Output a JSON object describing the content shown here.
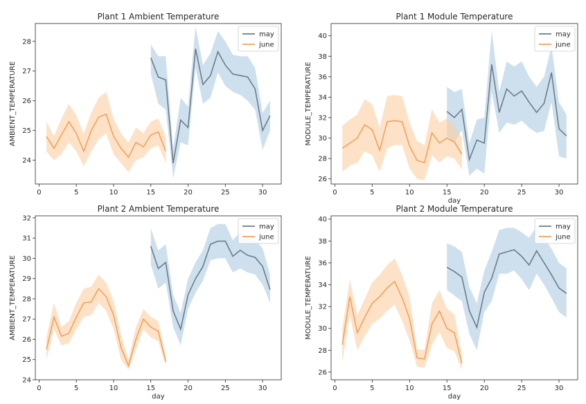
{
  "colors": {
    "may_line": "#6b7b8a",
    "may_band": "#aecbe3",
    "june_line": "#f5a05a",
    "june_band": "#fbcfa4"
  },
  "chart_data": [
    {
      "type": "line",
      "title": "Plant 1 Ambient Temperature",
      "xlabel": "",
      "ylabel": "AMBIENT_TEMPERATURE",
      "xlim": [
        -0.5,
        32.5
      ],
      "ylim": [
        23.2,
        28.6
      ],
      "xticks": [
        0,
        5,
        10,
        15,
        20,
        25,
        30
      ],
      "yticks": [
        24,
        25,
        26,
        27,
        28
      ],
      "legend": {
        "position": "top-right",
        "entries": [
          "may",
          "june"
        ]
      },
      "series": [
        {
          "name": "may",
          "x": [
            15,
            16,
            17,
            18,
            19,
            20,
            21,
            22,
            23,
            24,
            25,
            26,
            27,
            28,
            29,
            30,
            31
          ],
          "values": [
            27.45,
            26.8,
            26.7,
            23.9,
            25.35,
            25.1,
            27.75,
            26.55,
            26.85,
            27.65,
            27.2,
            26.9,
            26.85,
            26.8,
            26.4,
            25.0,
            25.5
          ],
          "lower": [
            26.9,
            25.9,
            25.7,
            23.4,
            24.6,
            24.5,
            27.1,
            25.9,
            26.1,
            26.95,
            26.5,
            26.3,
            26.2,
            26.0,
            25.7,
            24.35,
            25.0
          ],
          "upper": [
            27.9,
            27.5,
            27.5,
            24.4,
            26.1,
            25.8,
            28.5,
            27.2,
            27.6,
            28.35,
            28.0,
            27.55,
            27.5,
            27.5,
            27.1,
            25.6,
            26.0
          ]
        },
        {
          "name": "june",
          "x": [
            1,
            2,
            3,
            4,
            5,
            6,
            7,
            8,
            9,
            10,
            11,
            12,
            13,
            14,
            15,
            16,
            17
          ],
          "values": [
            24.8,
            24.4,
            24.85,
            25.3,
            24.9,
            24.3,
            25.0,
            25.45,
            25.55,
            24.8,
            24.4,
            24.1,
            24.6,
            24.45,
            24.85,
            24.95,
            24.3
          ],
          "lower": [
            24.3,
            24.0,
            24.2,
            24.6,
            24.3,
            23.8,
            24.3,
            24.7,
            24.9,
            24.2,
            23.9,
            23.6,
            24.0,
            24.1,
            24.4,
            24.5,
            23.9
          ],
          "upper": [
            25.3,
            24.8,
            25.4,
            25.9,
            25.5,
            24.9,
            25.6,
            26.1,
            26.3,
            25.4,
            24.9,
            24.6,
            25.1,
            24.9,
            25.3,
            25.4,
            24.8
          ]
        }
      ]
    },
    {
      "type": "line",
      "title": "Plant 1 Module Temperature",
      "xlabel": "day",
      "ylabel": "MODULE_TEMPERATURE",
      "xlim": [
        -0.5,
        32.5
      ],
      "ylim": [
        25.5,
        41.2
      ],
      "xticks": [
        0,
        5,
        10,
        15,
        20,
        25,
        30
      ],
      "yticks": [
        26,
        28,
        30,
        32,
        34,
        36,
        38,
        40
      ],
      "legend": {
        "position": "top-right",
        "entries": [
          "may",
          "june"
        ]
      },
      "series": [
        {
          "name": "may",
          "x": [
            15,
            16,
            17,
            18,
            19,
            20,
            21,
            22,
            23,
            24,
            25,
            26,
            27,
            28,
            29,
            30,
            31
          ],
          "values": [
            32.6,
            32.0,
            32.8,
            27.9,
            29.8,
            29.5,
            37.2,
            32.5,
            34.8,
            34.1,
            34.6,
            33.5,
            32.5,
            33.4,
            36.4,
            30.9,
            30.2
          ],
          "lower": [
            30.2,
            29.5,
            30.8,
            26.3,
            27.0,
            26.5,
            34.5,
            30.5,
            31.5,
            31.3,
            31.7,
            31.0,
            30.5,
            30.7,
            33.5,
            28.2,
            28.0
          ],
          "upper": [
            35.0,
            34.5,
            34.8,
            29.5,
            31.8,
            32.0,
            40.5,
            34.5,
            37.5,
            37.0,
            37.5,
            36.0,
            35.0,
            36.0,
            39.0,
            33.5,
            32.3
          ]
        },
        {
          "name": "june",
          "x": [
            1,
            2,
            3,
            4,
            5,
            6,
            7,
            8,
            9,
            10,
            11,
            12,
            13,
            14,
            15,
            16,
            17
          ],
          "values": [
            29.0,
            29.5,
            30.0,
            31.3,
            30.8,
            28.8,
            31.6,
            31.7,
            31.6,
            29.2,
            27.8,
            27.6,
            30.5,
            29.5,
            30.0,
            29.6,
            28.4
          ],
          "lower": [
            26.7,
            27.3,
            27.6,
            28.7,
            28.3,
            26.7,
            29.0,
            29.3,
            29.3,
            27.0,
            26.0,
            25.9,
            28.3,
            27.6,
            28.2,
            28.0,
            26.9
          ],
          "upper": [
            31.2,
            31.8,
            32.3,
            33.8,
            33.3,
            31.0,
            34.1,
            34.2,
            34.1,
            31.5,
            29.7,
            29.3,
            32.8,
            31.5,
            31.9,
            31.2,
            30.0
          ]
        }
      ]
    },
    {
      "type": "line",
      "title": "Plant 2 Ambient Temperature",
      "xlabel": "day",
      "ylabel": "AMBIENT_TEMPERATURE",
      "xlim": [
        -0.5,
        32.5
      ],
      "ylim": [
        24.0,
        32.1
      ],
      "xticks": [
        0,
        5,
        10,
        15,
        20,
        25,
        30
      ],
      "yticks": [
        24,
        25,
        26,
        27,
        28,
        29,
        30,
        31,
        32
      ],
      "legend": {
        "position": "top-right",
        "entries": [
          "may",
          "june"
        ]
      },
      "series": [
        {
          "name": "may",
          "x": [
            15,
            16,
            17,
            18,
            19,
            20,
            21,
            22,
            23,
            24,
            25,
            26,
            27,
            28,
            29,
            30,
            31
          ],
          "values": [
            30.6,
            29.5,
            29.8,
            27.4,
            26.5,
            28.2,
            29.0,
            29.6,
            30.7,
            30.85,
            30.85,
            30.1,
            30.4,
            30.15,
            30.05,
            29.6,
            28.45
          ],
          "lower": [
            29.7,
            28.5,
            28.8,
            26.6,
            25.7,
            27.5,
            28.3,
            28.9,
            29.9,
            30.0,
            30.0,
            29.3,
            29.5,
            29.3,
            29.2,
            28.7,
            27.8
          ],
          "upper": [
            31.5,
            30.4,
            30.7,
            28.2,
            27.3,
            29.0,
            29.8,
            30.4,
            31.5,
            31.7,
            31.7,
            30.9,
            31.3,
            31.0,
            30.9,
            30.5,
            29.2
          ]
        },
        {
          "name": "june",
          "x": [
            1,
            2,
            3,
            4,
            5,
            6,
            7,
            8,
            9,
            10,
            11,
            12,
            13,
            14,
            15,
            16,
            17
          ],
          "values": [
            25.5,
            27.1,
            26.15,
            26.3,
            27.1,
            27.8,
            27.85,
            28.5,
            28.1,
            27.2,
            25.6,
            24.7,
            26.0,
            27.0,
            26.6,
            26.4,
            24.9
          ],
          "lower": [
            25.0,
            26.5,
            25.7,
            25.8,
            26.5,
            27.1,
            27.2,
            27.8,
            27.4,
            26.5,
            25.0,
            24.5,
            25.5,
            26.5,
            26.1,
            25.9,
            24.7
          ],
          "upper": [
            26.1,
            27.8,
            26.6,
            26.9,
            27.8,
            28.5,
            28.6,
            29.2,
            28.8,
            27.9,
            26.2,
            25.0,
            26.6,
            27.5,
            27.1,
            26.9,
            25.2
          ]
        }
      ]
    },
    {
      "type": "line",
      "title": "Plant 2 Module Temperature",
      "xlabel": "day",
      "ylabel": "MODULE_TEMPERATURE",
      "xlim": [
        -0.5,
        32.5
      ],
      "ylim": [
        25.3,
        40.3
      ],
      "xticks": [
        0,
        5,
        10,
        15,
        20,
        25,
        30
      ],
      "yticks": [
        26,
        28,
        30,
        32,
        34,
        36,
        38,
        40
      ],
      "legend": {
        "position": "top-right",
        "entries": [
          "may",
          "june"
        ]
      },
      "series": [
        {
          "name": "may",
          "x": [
            15,
            16,
            17,
            18,
            19,
            20,
            21,
            22,
            23,
            24,
            25,
            26,
            27,
            28,
            29,
            30,
            31
          ],
          "values": [
            35.6,
            35.2,
            34.7,
            31.6,
            30.1,
            33.3,
            34.6,
            36.8,
            37.0,
            37.2,
            36.6,
            35.8,
            37.1,
            36.0,
            34.9,
            33.7,
            33.2
          ],
          "lower": [
            33.5,
            33.0,
            32.5,
            29.5,
            28.0,
            31.5,
            32.5,
            35.0,
            35.0,
            35.3,
            34.5,
            33.5,
            35.0,
            34.0,
            32.8,
            31.5,
            31.0
          ],
          "upper": [
            37.8,
            37.5,
            37.0,
            33.8,
            32.3,
            35.3,
            37.0,
            39.0,
            39.2,
            39.2,
            38.8,
            38.3,
            39.3,
            38.3,
            37.3,
            36.0,
            35.5
          ]
        },
        {
          "name": "june",
          "x": [
            1,
            2,
            3,
            4,
            5,
            6,
            7,
            8,
            9,
            10,
            11,
            12,
            13,
            14,
            15,
            16,
            17
          ],
          "values": [
            28.5,
            32.9,
            29.6,
            31.0,
            32.3,
            32.9,
            33.7,
            34.3,
            32.8,
            30.9,
            27.3,
            27.2,
            30.4,
            31.6,
            30.0,
            29.6,
            26.8
          ],
          "lower": [
            26.9,
            31.2,
            28.0,
            29.3,
            30.4,
            30.9,
            31.6,
            32.2,
            30.7,
            28.9,
            26.5,
            26.4,
            28.5,
            29.7,
            28.2,
            27.9,
            26.2
          ],
          "upper": [
            30.0,
            34.5,
            31.2,
            32.7,
            34.2,
            34.9,
            35.8,
            36.4,
            34.9,
            32.9,
            28.1,
            28.0,
            32.3,
            33.5,
            31.8,
            31.3,
            27.6
          ]
        }
      ]
    }
  ]
}
